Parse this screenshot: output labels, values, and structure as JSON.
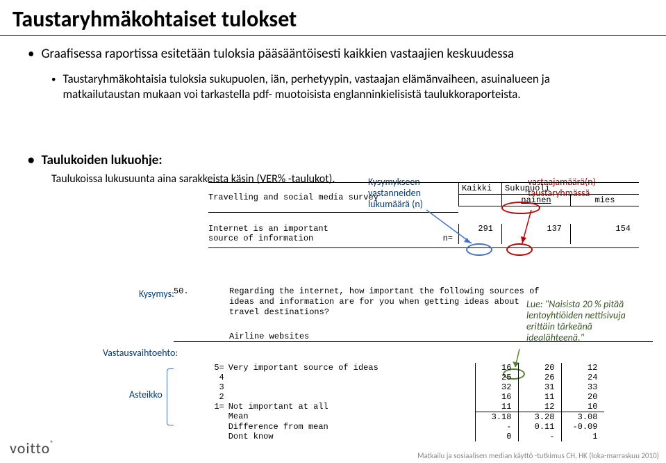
{
  "title": "Taustaryhmäkohtaiset tulokset",
  "bullet1": "Graafisessa raportissa esitetään tuloksia pääsääntöisesti kaikkien vastaajien keskuudessa",
  "sub1": "Taustaryhmäkohtaisia tuloksia sukupuolen, iän, perhetyypin, vastaajan elämänvaiheen, asuinalueen ja matkailutaustan mukaan voi tarkastella pdf- muotoisista englanninkielisistä taulukkoraporteista.",
  "bullet2": "Taulukoiden lukuohje:",
  "bullet2_sub": "Taulukoissa lukusuunta aina sarakkeista käsin (VER% -taulukot).",
  "anno": {
    "kysymykseen": "Kysymykseen\nvastanneiden\nlukumäärä (n)",
    "vastaaja": "vastaajamäärä(n)\ntaustaryhmässä",
    "kysymys": "Kysymys:",
    "vastausvaihtoehto": "Vastausvaihtoehto:",
    "asteikko": "Asteikko",
    "green": "Lue: \"Naisista 20 % pitää lentoyhtiöiden nettisivuja erittäin tärkeänä idealähteenä.\""
  },
  "table": {
    "survey_title": "Travelling and social media survey",
    "h_kaikki": "Kaikki",
    "h_sukupuoli": "Sukupuoli",
    "h_nainen": "nainen",
    "h_mies": "mies",
    "row_label": "Internet is an important\nsource of information",
    "n_label": "n=",
    "n_vals": [
      "291",
      "137",
      "154"
    ],
    "question_num": "50.",
    "question_text": "Regarding the internet, how important the following sources of ideas and information are for you when getting ideas about travel destinations?",
    "answer": "Airline websites",
    "scale": [
      {
        "k": "5=",
        "d": "Very important source of ideas",
        "v": [
          "16",
          "20",
          "12"
        ]
      },
      {
        "k": "4",
        "d": "",
        "v": [
          "25",
          "26",
          "24"
        ]
      },
      {
        "k": "3",
        "d": "",
        "v": [
          "32",
          "31",
          "33"
        ]
      },
      {
        "k": "2",
        "d": "",
        "v": [
          "16",
          "11",
          "20"
        ]
      },
      {
        "k": "1=",
        "d": "Not important at all",
        "v": [
          "11",
          "12",
          "10"
        ]
      },
      {
        "k": "",
        "d": "Mean",
        "v": [
          "3.18",
          "3.28",
          "3.08"
        ]
      },
      {
        "k": "",
        "d": "Difference from mean",
        "v": [
          "-",
          "0.11",
          "-0.09"
        ]
      },
      {
        "k": "",
        "d": "Dont know",
        "v": [
          "0",
          "-",
          "1"
        ]
      }
    ]
  },
  "footer": "Matkailu ja sosiaalisen median käyttö -tutkimus CH, HK (loka-marraskuu 2010)",
  "logo": "voitto"
}
